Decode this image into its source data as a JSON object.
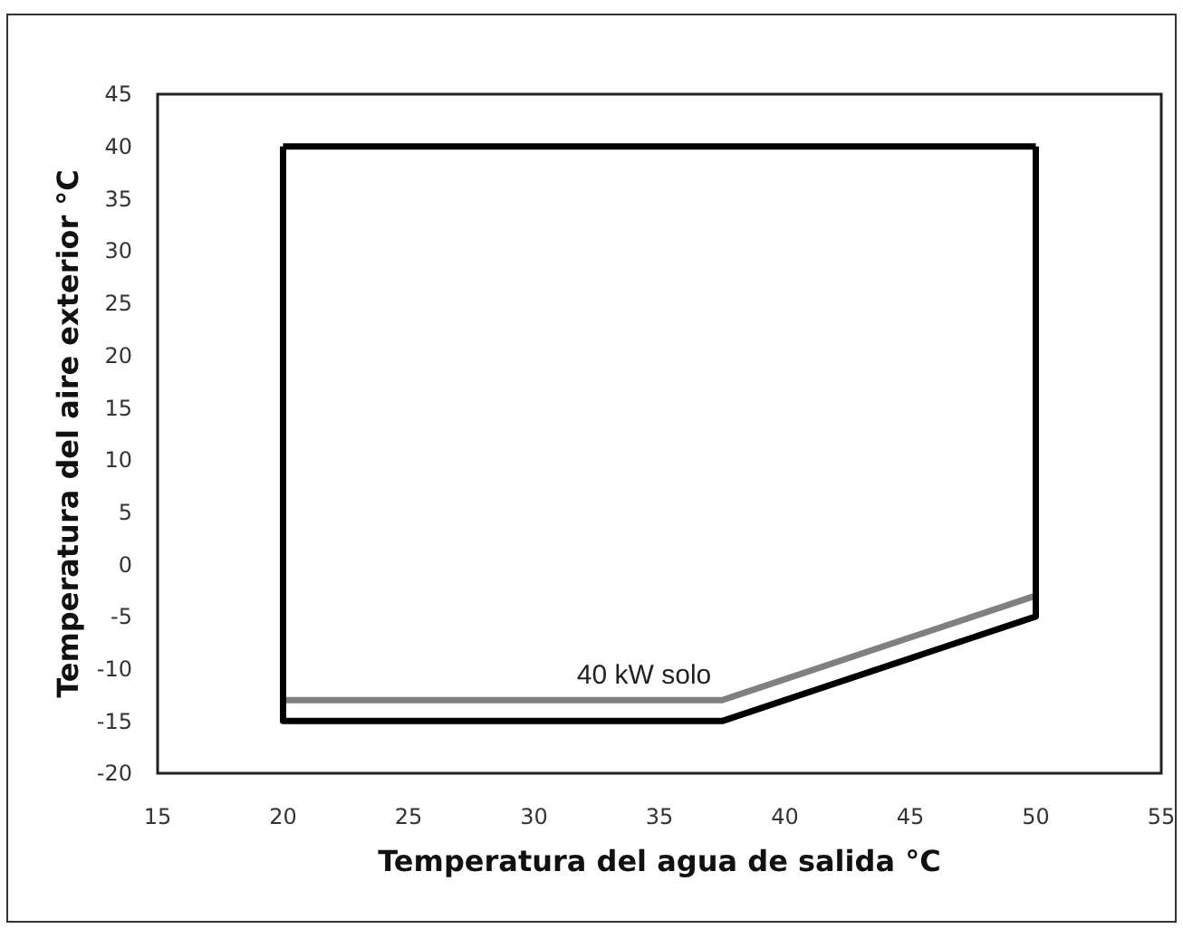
{
  "chart_data": {
    "type": "line",
    "xlabel": "Temperatura del agua de salida °C",
    "ylabel": "Temperatura del aire exterior °C",
    "xlim": [
      15,
      55
    ],
    "xticks": [
      15,
      20,
      25,
      30,
      35,
      40,
      45,
      50,
      55
    ],
    "ylim": [
      -20,
      45
    ],
    "yticks": [
      -20,
      -15,
      -10,
      -5,
      0,
      5,
      10,
      15,
      20,
      25,
      30,
      35,
      40,
      45
    ],
    "grid": false,
    "legend": false,
    "marker": "none",
    "line_style": "solid",
    "series": [
      {
        "name": "40 kW solo",
        "color": "#808080",
        "x": [
          20,
          37.5,
          50
        ],
        "values": [
          -13,
          -13,
          -3
        ]
      },
      {
        "color": "#000000",
        "x": [
          20,
          20,
          37.5,
          50,
          50
        ],
        "values": [
          40,
          -15,
          -15,
          -5,
          40
        ]
      },
      {
        "color": "#000000",
        "x": [
          20,
          50
        ],
        "values": [
          40,
          40
        ]
      }
    ]
  }
}
